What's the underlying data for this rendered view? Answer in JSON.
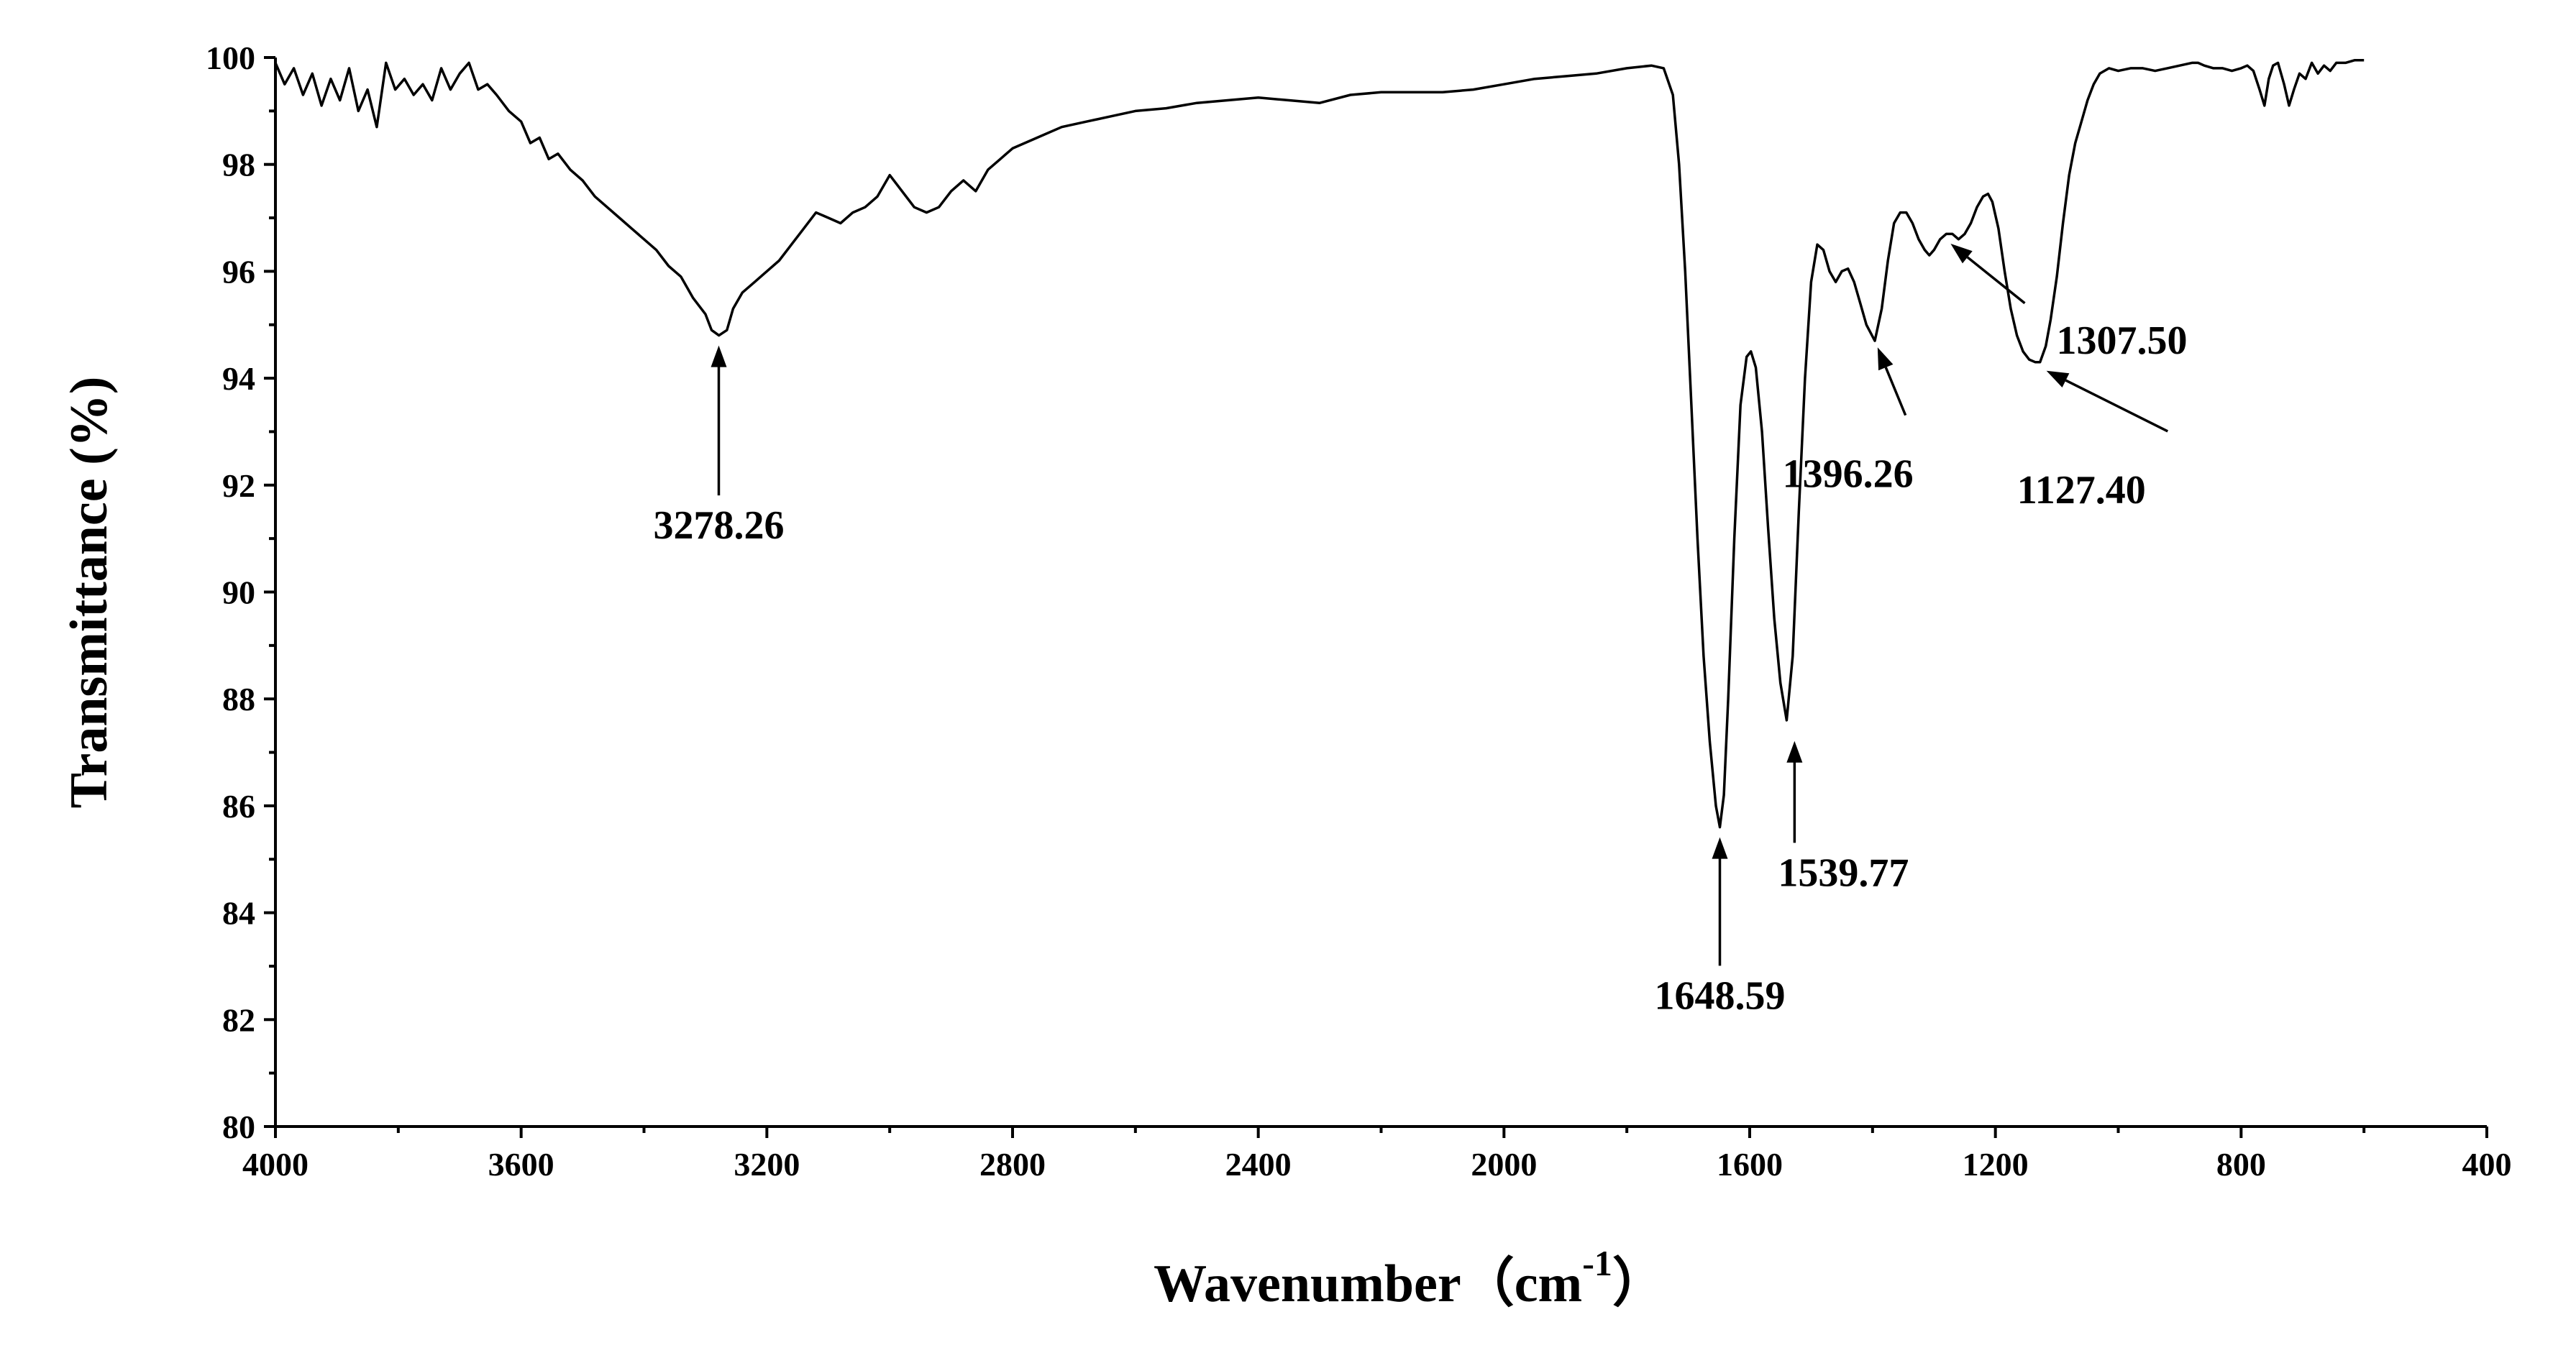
{
  "chart_data": {
    "type": "line",
    "title": "",
    "xlabel": "Wavenumber（cm",
    "xlabel_sup": "-1",
    "xlabel_close": "）",
    "ylabel": "Transmittance (%)",
    "xlim": [
      4000,
      400
    ],
    "ylim": [
      80,
      100
    ],
    "x_reversed": true,
    "grid": false,
    "legend": "none",
    "xticks": [
      4000,
      3600,
      3200,
      2800,
      2400,
      2000,
      1600,
      1200,
      800,
      400
    ],
    "xtick_labels": [
      "4000",
      "3600",
      "3200",
      "2800",
      "2400",
      "2000",
      "1600",
      "1200",
      "800",
      "400"
    ],
    "yticks": [
      80,
      82,
      84,
      86,
      88,
      90,
      92,
      94,
      96,
      98,
      100
    ],
    "ytick_labels": [
      "80",
      "82",
      "84",
      "86",
      "88",
      "90",
      "92",
      "94",
      "96",
      "98",
      "100"
    ],
    "series": [
      {
        "color": "#000000",
        "points": [
          [
            4000,
            99.9
          ],
          [
            3985,
            99.5
          ],
          [
            3970,
            99.8
          ],
          [
            3955,
            99.3
          ],
          [
            3940,
            99.7
          ],
          [
            3925,
            99.1
          ],
          [
            3910,
            99.6
          ],
          [
            3895,
            99.2
          ],
          [
            3880,
            99.8
          ],
          [
            3865,
            99.0
          ],
          [
            3850,
            99.4
          ],
          [
            3835,
            98.7
          ],
          [
            3820,
            99.9
          ],
          [
            3805,
            99.4
          ],
          [
            3790,
            99.6
          ],
          [
            3775,
            99.3
          ],
          [
            3760,
            99.5
          ],
          [
            3745,
            99.2
          ],
          [
            3730,
            99.8
          ],
          [
            3715,
            99.4
          ],
          [
            3700,
            99.7
          ],
          [
            3685,
            99.9
          ],
          [
            3670,
            99.4
          ],
          [
            3655,
            99.5
          ],
          [
            3640,
            99.3
          ],
          [
            3620,
            99.0
          ],
          [
            3600,
            98.8
          ],
          [
            3585,
            98.4
          ],
          [
            3570,
            98.5
          ],
          [
            3555,
            98.1
          ],
          [
            3540,
            98.2
          ],
          [
            3520,
            97.9
          ],
          [
            3500,
            97.7
          ],
          [
            3480,
            97.4
          ],
          [
            3460,
            97.2
          ],
          [
            3440,
            97.0
          ],
          [
            3420,
            96.8
          ],
          [
            3400,
            96.6
          ],
          [
            3380,
            96.4
          ],
          [
            3360,
            96.1
          ],
          [
            3340,
            95.9
          ],
          [
            3320,
            95.5
          ],
          [
            3300,
            95.2
          ],
          [
            3290,
            94.9
          ],
          [
            3278,
            94.8
          ],
          [
            3265,
            94.9
          ],
          [
            3255,
            95.3
          ],
          [
            3240,
            95.6
          ],
          [
            3220,
            95.8
          ],
          [
            3200,
            96.0
          ],
          [
            3180,
            96.2
          ],
          [
            3160,
            96.5
          ],
          [
            3140,
            96.8
          ],
          [
            3120,
            97.1
          ],
          [
            3100,
            97.0
          ],
          [
            3080,
            96.9
          ],
          [
            3060,
            97.1
          ],
          [
            3040,
            97.2
          ],
          [
            3020,
            97.4
          ],
          [
            3000,
            97.8
          ],
          [
            2980,
            97.5
          ],
          [
            2960,
            97.2
          ],
          [
            2940,
            97.1
          ],
          [
            2920,
            97.2
          ],
          [
            2900,
            97.5
          ],
          [
            2880,
            97.7
          ],
          [
            2860,
            97.5
          ],
          [
            2840,
            97.9
          ],
          [
            2820,
            98.1
          ],
          [
            2800,
            98.3
          ],
          [
            2760,
            98.5
          ],
          [
            2720,
            98.7
          ],
          [
            2680,
            98.8
          ],
          [
            2640,
            98.9
          ],
          [
            2600,
            99.0
          ],
          [
            2550,
            99.05
          ],
          [
            2500,
            99.15
          ],
          [
            2450,
            99.2
          ],
          [
            2400,
            99.25
          ],
          [
            2350,
            99.2
          ],
          [
            2300,
            99.15
          ],
          [
            2250,
            99.3
          ],
          [
            2200,
            99.35
          ],
          [
            2150,
            99.35
          ],
          [
            2100,
            99.35
          ],
          [
            2050,
            99.4
          ],
          [
            2000,
            99.5
          ],
          [
            1950,
            99.6
          ],
          [
            1900,
            99.65
          ],
          [
            1850,
            99.7
          ],
          [
            1800,
            99.8
          ],
          [
            1760,
            99.85
          ],
          [
            1740,
            99.8
          ],
          [
            1725,
            99.3
          ],
          [
            1715,
            98.0
          ],
          [
            1705,
            96.0
          ],
          [
            1695,
            93.5
          ],
          [
            1685,
            91.0
          ],
          [
            1675,
            88.8
          ],
          [
            1665,
            87.2
          ],
          [
            1655,
            86.0
          ],
          [
            1648.59,
            85.6
          ],
          [
            1642,
            86.2
          ],
          [
            1635,
            88.0
          ],
          [
            1625,
            91.0
          ],
          [
            1615,
            93.5
          ],
          [
            1605,
            94.4
          ],
          [
            1598,
            94.5
          ],
          [
            1590,
            94.2
          ],
          [
            1580,
            93.0
          ],
          [
            1570,
            91.2
          ],
          [
            1560,
            89.5
          ],
          [
            1550,
            88.3
          ],
          [
            1539.77,
            87.6
          ],
          [
            1530,
            88.8
          ],
          [
            1520,
            91.5
          ],
          [
            1510,
            94.0
          ],
          [
            1500,
            95.8
          ],
          [
            1490,
            96.5
          ],
          [
            1480,
            96.4
          ],
          [
            1470,
            96.0
          ],
          [
            1460,
            95.8
          ],
          [
            1450,
            96.0
          ],
          [
            1440,
            96.05
          ],
          [
            1430,
            95.8
          ],
          [
            1420,
            95.4
          ],
          [
            1410,
            95.0
          ],
          [
            1396.26,
            94.7
          ],
          [
            1385,
            95.3
          ],
          [
            1375,
            96.2
          ],
          [
            1365,
            96.9
          ],
          [
            1355,
            97.1
          ],
          [
            1345,
            97.1
          ],
          [
            1335,
            96.9
          ],
          [
            1325,
            96.6
          ],
          [
            1315,
            96.4
          ],
          [
            1307.5,
            96.3
          ],
          [
            1300,
            96.4
          ],
          [
            1290,
            96.6
          ],
          [
            1280,
            96.7
          ],
          [
            1270,
            96.7
          ],
          [
            1260,
            96.6
          ],
          [
            1250,
            96.7
          ],
          [
            1240,
            96.9
          ],
          [
            1230,
            97.2
          ],
          [
            1220,
            97.4
          ],
          [
            1212,
            97.45
          ],
          [
            1205,
            97.3
          ],
          [
            1195,
            96.8
          ],
          [
            1185,
            96.0
          ],
          [
            1175,
            95.3
          ],
          [
            1165,
            94.8
          ],
          [
            1155,
            94.5
          ],
          [
            1145,
            94.35
          ],
          [
            1135,
            94.3
          ],
          [
            1127.4,
            94.3
          ],
          [
            1118,
            94.6
          ],
          [
            1110,
            95.1
          ],
          [
            1100,
            95.9
          ],
          [
            1090,
            96.9
          ],
          [
            1080,
            97.8
          ],
          [
            1070,
            98.4
          ],
          [
            1060,
            98.8
          ],
          [
            1050,
            99.2
          ],
          [
            1040,
            99.5
          ],
          [
            1030,
            99.7
          ],
          [
            1015,
            99.8
          ],
          [
            1000,
            99.75
          ],
          [
            980,
            99.8
          ],
          [
            960,
            99.8
          ],
          [
            940,
            99.75
          ],
          [
            920,
            99.8
          ],
          [
            900,
            99.85
          ],
          [
            880,
            99.9
          ],
          [
            870,
            99.9
          ],
          [
            860,
            99.85
          ],
          [
            845,
            99.8
          ],
          [
            830,
            99.8
          ],
          [
            815,
            99.75
          ],
          [
            800,
            99.8
          ],
          [
            790,
            99.85
          ],
          [
            780,
            99.75
          ],
          [
            770,
            99.4
          ],
          [
            762,
            99.1
          ],
          [
            755,
            99.6
          ],
          [
            748,
            99.85
          ],
          [
            740,
            99.9
          ],
          [
            730,
            99.5
          ],
          [
            722,
            99.1
          ],
          [
            714,
            99.4
          ],
          [
            705,
            99.7
          ],
          [
            695,
            99.6
          ],
          [
            685,
            99.9
          ],
          [
            675,
            99.7
          ],
          [
            665,
            99.85
          ],
          [
            655,
            99.75
          ],
          [
            645,
            99.9
          ],
          [
            630,
            99.9
          ],
          [
            615,
            99.95
          ],
          [
            600,
            99.95
          ]
        ]
      }
    ],
    "annotations": [
      {
        "label": "3278.26",
        "x": 3278.26,
        "y": 94.8,
        "kind": "up",
        "text_y": 91.0
      },
      {
        "label": "1648.59",
        "x": 1648.59,
        "y": 85.6,
        "kind": "up",
        "text_y": 82.2
      },
      {
        "label": "1539.77",
        "x": 1527,
        "y": 87.4,
        "kind": "up",
        "text_y": 84.5
      },
      {
        "label": "1396.26",
        "x": 1396.26,
        "y": 94.7,
        "kind": "diag",
        "text_x": 1440,
        "text_y": 92.5
      },
      {
        "label": "1307.50",
        "x": 1282,
        "y": 96.6,
        "kind": "diag",
        "text_x": 1000,
        "text_y": 95.0
      },
      {
        "label": "1127.40",
        "x": 1127.4,
        "y": 94.2,
        "kind": "diag",
        "text_x": 1060,
        "text_y": 92.2
      }
    ]
  }
}
